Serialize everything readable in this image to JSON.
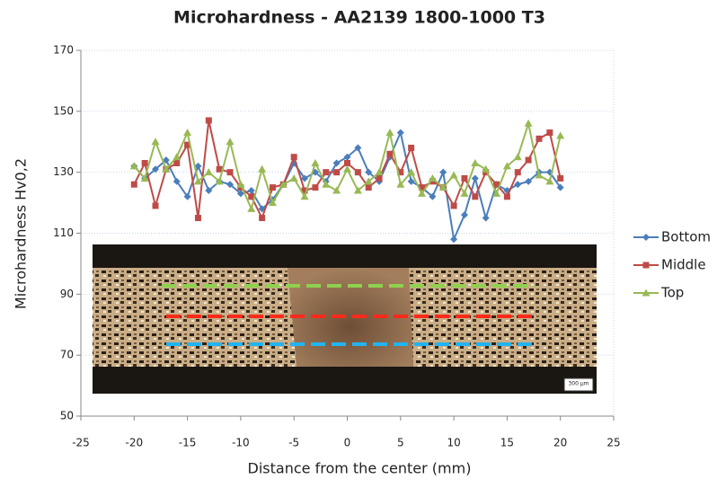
{
  "chart_data": {
    "type": "line",
    "title": "Microhardness - AA2139 1800-1000 T3",
    "x_label": "Distance from the center (mm)",
    "y_label": "Microhardness Hv0,2",
    "x": [
      -20,
      -19,
      -18,
      -17,
      -16,
      -15,
      -14,
      -13,
      -12,
      -11,
      -10,
      -9,
      -8,
      -7,
      -6,
      -5,
      -4,
      -3,
      -2,
      -1,
      0,
      1,
      2,
      3,
      4,
      5,
      6,
      7,
      8,
      9,
      10,
      11,
      12,
      13,
      14,
      15,
      16,
      17,
      18,
      19,
      20
    ],
    "series": [
      {
        "name": "Bottom",
        "color": "#4a7ebb",
        "marker": "diamond",
        "values": [
          132,
          128,
          131,
          134,
          127,
          122,
          132,
          124,
          127,
          126,
          123,
          124,
          118,
          121,
          126,
          133,
          128,
          130,
          127,
          133,
          135,
          138,
          130,
          127,
          135,
          143,
          127,
          125,
          122,
          130,
          108,
          116,
          128,
          115,
          126,
          124,
          126,
          127,
          130,
          130,
          125
        ]
      },
      {
        "name": "Middle",
        "color": "#be4b48",
        "marker": "square",
        "values": [
          126,
          133,
          119,
          131,
          133,
          139,
          115,
          147,
          131,
          130,
          125,
          122,
          115,
          125,
          126,
          135,
          124,
          125,
          130,
          130,
          133,
          130,
          125,
          128,
          136,
          130,
          138,
          125,
          127,
          125,
          119,
          128,
          122,
          130,
          126,
          122,
          130,
          134,
          141,
          143,
          128
        ]
      },
      {
        "name": "Top",
        "color": "#98b954",
        "marker": "triangle",
        "values": [
          132,
          128,
          140,
          131,
          135,
          143,
          127,
          130,
          127,
          140,
          126,
          118,
          131,
          120,
          126,
          128,
          122,
          133,
          126,
          124,
          131,
          124,
          127,
          130,
          143,
          126,
          130,
          123,
          128,
          125,
          129,
          123,
          133,
          131,
          123,
          132,
          135,
          146,
          129,
          127,
          142
        ]
      }
    ],
    "xlim": [
      -25,
      25
    ],
    "xticks": [
      -25,
      -20,
      -15,
      -10,
      -5,
      0,
      5,
      10,
      15,
      20,
      25
    ],
    "ylim": [
      50,
      170
    ],
    "yticks": [
      50,
      70,
      90,
      110,
      130,
      150,
      170
    ],
    "grid": true,
    "legend": "right",
    "scale_bar": "300 µm"
  }
}
